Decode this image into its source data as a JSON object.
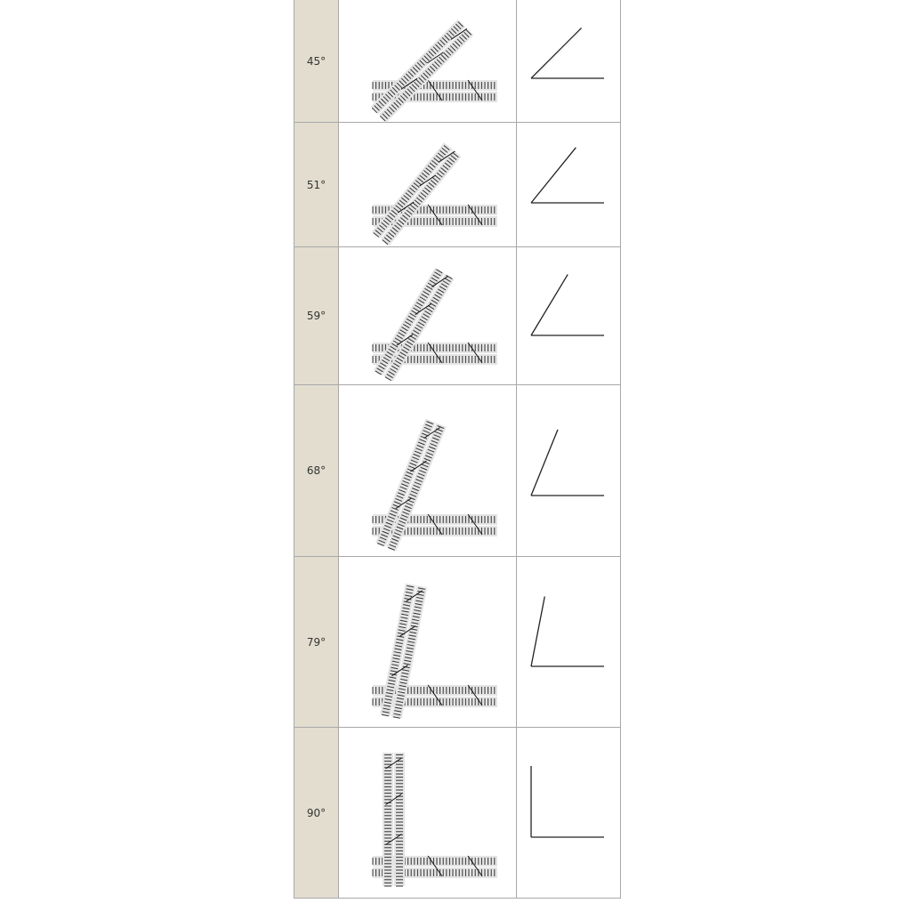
{
  "rows": [
    {
      "label": "45°",
      "angle": 45
    },
    {
      "label": "51°",
      "angle": 51
    },
    {
      "label": "59°",
      "angle": 59
    },
    {
      "label": "68°",
      "angle": 68
    },
    {
      "label": "79°",
      "angle": 79
    },
    {
      "label": "90°",
      "angle": 90
    }
  ],
  "colors": {
    "label_column": "#e2ddcf",
    "border": "#a8a8a8",
    "line": "#222222"
  }
}
